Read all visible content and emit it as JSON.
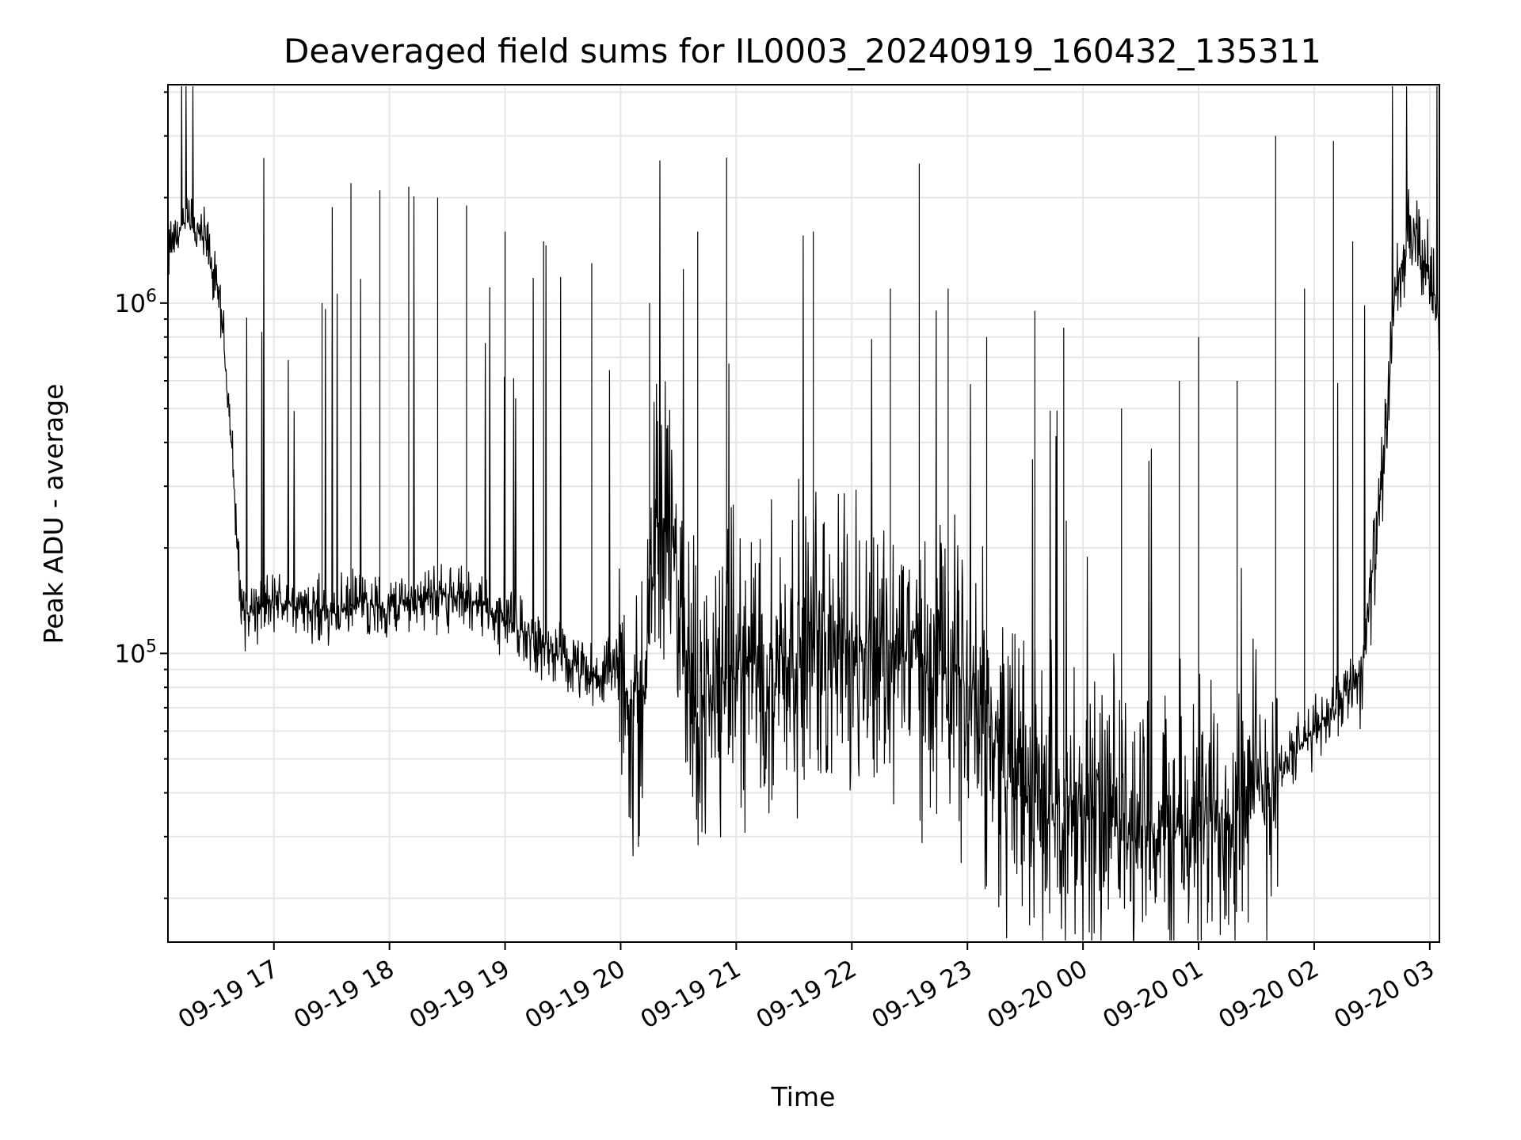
{
  "chart_data": {
    "type": "line",
    "title": "Deaveraged field sums for IL0003_20240919_160432_135311",
    "xlabel": "Time",
    "ylabel": "Peak ADU - average",
    "yscale": "log",
    "xlim": [
      "2024-09-19T16:05",
      "2024-09-20T03:05"
    ],
    "ylim": [
      15000,
      4200000
    ],
    "grid": true,
    "line_color": "#000000",
    "x_ticks": [
      "09-19 17",
      "09-19 18",
      "09-19 19",
      "09-19 20",
      "09-19 21",
      "09-19 22",
      "09-19 23",
      "09-20 00",
      "09-20 01",
      "09-20 02",
      "09-20 03"
    ],
    "y_ticks": [
      {
        "base": "10",
        "exp": "5",
        "value": 100000
      },
      {
        "base": "10",
        "exp": "6",
        "value": 1000000
      }
    ],
    "series": [
      {
        "x": [
          "2024-09-19T16:05",
          "2024-09-19T16:15",
          "2024-09-19T16:25",
          "2024-09-19T16:33",
          "2024-09-19T16:38",
          "2024-09-19T16:42",
          "2024-09-19T16:45",
          "2024-09-19T17:00",
          "2024-09-19T17:15",
          "2024-09-19T17:30",
          "2024-09-19T17:45",
          "2024-09-19T18:00",
          "2024-09-19T18:15",
          "2024-09-19T18:30",
          "2024-09-19T18:45",
          "2024-09-19T19:00",
          "2024-09-19T19:15",
          "2024-09-19T19:30",
          "2024-09-19T19:45",
          "2024-09-19T20:00",
          "2024-09-19T20:10",
          "2024-09-19T20:20",
          "2024-09-19T20:40",
          "2024-09-19T21:00",
          "2024-09-19T21:30",
          "2024-09-19T22:00",
          "2024-09-19T22:30",
          "2024-09-19T23:00",
          "2024-09-19T23:30",
          "2024-09-20T00:00",
          "2024-09-20T00:30",
          "2024-09-20T01:00",
          "2024-09-20T01:30",
          "2024-09-20T02:00",
          "2024-09-20T02:25",
          "2024-09-20T02:35",
          "2024-09-20T02:42",
          "2024-09-20T02:50",
          "2024-09-20T03:00",
          "2024-09-20T03:05"
        ],
        "y": [
          1400000,
          1700000,
          1500000,
          900000,
          400000,
          160000,
          130000,
          140000,
          135000,
          130000,
          140000,
          135000,
          145000,
          145000,
          140000,
          125000,
          110000,
          95000,
          85000,
          90000,
          60000,
          300000,
          70000,
          90000,
          100000,
          110000,
          100000,
          80000,
          40000,
          35000,
          30000,
          32000,
          40000,
          60000,
          90000,
          300000,
          1000000,
          1600000,
          1200000,
          900000
        ],
        "spikes": [
          [
            "2024-09-19T17:25",
            1000000
          ],
          [
            "2024-09-19T17:40",
            2200000
          ],
          [
            "2024-09-19T17:55",
            2100000
          ],
          [
            "2024-09-19T18:10",
            2150000
          ],
          [
            "2024-09-19T18:25",
            2000000
          ],
          [
            "2024-09-19T18:40",
            1900000
          ],
          [
            "2024-09-19T19:00",
            1600000
          ],
          [
            "2024-09-19T19:20",
            1500000
          ],
          [
            "2024-09-19T19:45",
            1300000
          ],
          [
            "2024-09-19T20:15",
            1000000
          ],
          [
            "2024-09-19T20:40",
            1600000
          ],
          [
            "2024-09-19T20:55",
            2600000
          ],
          [
            "2024-09-19T21:40",
            1600000
          ],
          [
            "2024-09-19T22:20",
            1100000
          ],
          [
            "2024-09-19T22:35",
            2500000
          ],
          [
            "2024-09-19T22:50",
            1100000
          ],
          [
            "2024-09-19T23:10",
            800000
          ],
          [
            "2024-09-19T23:35",
            950000
          ],
          [
            "2024-09-19T23:50",
            850000
          ],
          [
            "2024-09-20T00:20",
            500000
          ],
          [
            "2024-09-20T00:50",
            600000
          ],
          [
            "2024-09-20T01:00",
            800000
          ],
          [
            "2024-09-20T01:20",
            600000
          ],
          [
            "2024-09-20T01:40",
            3000000
          ],
          [
            "2024-09-20T01:55",
            1100000
          ],
          [
            "2024-09-20T02:10",
            2900000
          ],
          [
            "2024-09-20T02:20",
            1500000
          ]
        ]
      }
    ]
  }
}
